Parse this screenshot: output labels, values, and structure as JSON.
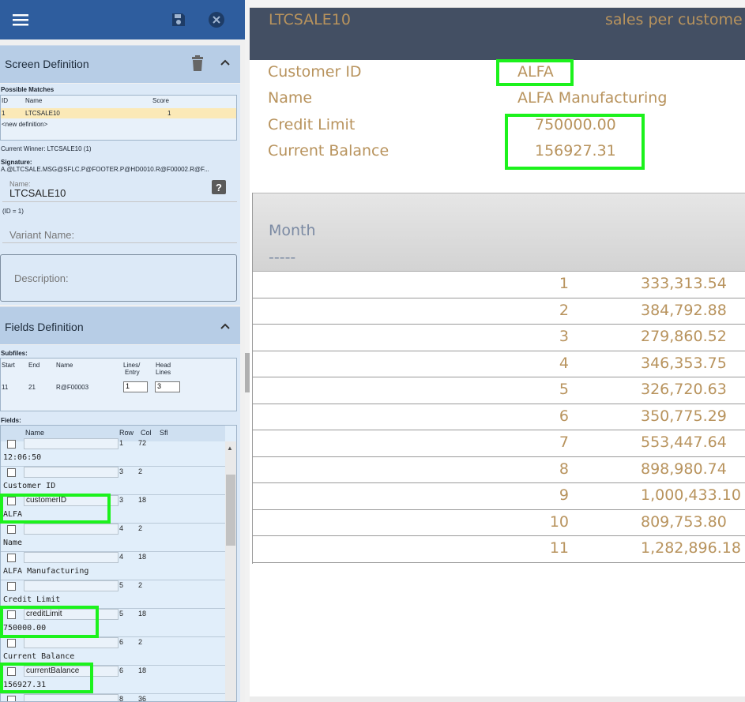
{
  "left": {
    "screen_definition": {
      "title": "Screen Definition",
      "possible_matches_label": "Possible Matches",
      "columns": {
        "id": "ID",
        "name": "Name",
        "score": "Score"
      },
      "match_row": {
        "id": "1",
        "name": "LTCSALE10",
        "score": "1"
      },
      "new_definition": "<new definition>",
      "current_winner": "Current Winner: LTCSALE10 (1)",
      "signature_label": "Signature:",
      "signature_value": "A.@LTCSALE.MSG@SFLC.P@FOOTER.P@HD0010.R@F00002.R@F...",
      "name_label": "Name:",
      "name_value": "LTCSALE10",
      "id_note": "(ID = 1)",
      "variant_placeholder": "Variant Name:",
      "description_placeholder": "Description:"
    },
    "fields_definition": {
      "title": "Fields Definition",
      "subfiles_label": "Subfiles:",
      "subfile_columns": {
        "start": "Start",
        "end": "End",
        "name": "Name",
        "lines_a": "Lines/",
        "lines_b": "Entry",
        "head_a": "Head",
        "head_b": "Lines"
      },
      "subfile_row": {
        "start": "11",
        "end": "21",
        "name": "R@F00003",
        "lines": "1",
        "head": "3"
      },
      "fields_label": "Fields:",
      "field_columns": {
        "name": "Name",
        "row": "Row",
        "col": "Col",
        "sfl": "Sfl"
      },
      "rows": [
        {
          "name": "",
          "row": "1",
          "col": "72",
          "text": "12:06:50"
        },
        {
          "name": "",
          "row": "3",
          "col": "2",
          "text": "Customer ID"
        },
        {
          "name": "customerID",
          "row": "3",
          "col": "18",
          "text": "ALFA"
        },
        {
          "name": "",
          "row": "4",
          "col": "2",
          "text": "Name"
        },
        {
          "name": "",
          "row": "4",
          "col": "18",
          "text": "ALFA Manufacturing"
        },
        {
          "name": "",
          "row": "5",
          "col": "2",
          "text": "Credit Limit"
        },
        {
          "name": "creditLimit",
          "row": "5",
          "col": "18",
          "text": "750000.00"
        },
        {
          "name": "",
          "row": "6",
          "col": "2",
          "text": "Current Balance"
        },
        {
          "name": "currentBalance",
          "row": "6",
          "col": "18",
          "text": "156927.31"
        },
        {
          "name": "",
          "row": "8",
          "col": "36",
          "text": ""
        }
      ]
    }
  },
  "screen": {
    "program": "LTCSALE10",
    "title": "sales per custome",
    "customer_id_label": "Customer ID",
    "customer_id": "ALFA",
    "name_label": "Name",
    "name": "ALFA Manufacturing",
    "credit_limit_label": "Credit Limit",
    "credit_limit": "750000.00",
    "current_balance_label": "Current Balance",
    "current_balance": "156927.31",
    "month_header": "Month",
    "month_underline": "-----",
    "rows": [
      {
        "month": "1",
        "sales": "333,313.54"
      },
      {
        "month": "2",
        "sales": "384,792.88"
      },
      {
        "month": "3",
        "sales": "279,860.52"
      },
      {
        "month": "4",
        "sales": "346,353.75"
      },
      {
        "month": "5",
        "sales": "326,720.63"
      },
      {
        "month": "6",
        "sales": "350,775.29"
      },
      {
        "month": "7",
        "sales": "553,447.64"
      },
      {
        "month": "8",
        "sales": "898,980.74"
      },
      {
        "month": "9",
        "sales": "1,000,433.10"
      },
      {
        "month": "10",
        "sales": "809,753.80"
      },
      {
        "month": "11",
        "sales": "1,282,896.18"
      }
    ]
  },
  "colors": {
    "topbar": "#2e5d9e",
    "section_header": "#b7cde6",
    "screen_header": "#434f63",
    "gold_text": "#b8935d",
    "highlight": "#1cf21c"
  }
}
